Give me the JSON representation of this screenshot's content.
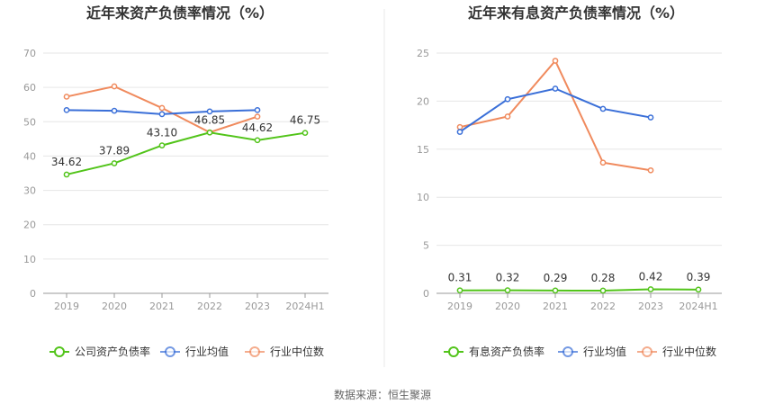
{
  "source": "数据来源：恒生聚源",
  "chart_data": [
    {
      "type": "line",
      "title": "近年来资产负债率情况（%）",
      "categories": [
        "2019",
        "2020",
        "2021",
        "2022",
        "2023",
        "2024H1"
      ],
      "ylim": [
        0,
        70
      ],
      "yticks": [
        0,
        10,
        20,
        30,
        40,
        50,
        60,
        70
      ],
      "grid": true,
      "legend_position": "bottom",
      "series": [
        {
          "name": "公司资产负债率",
          "color": "#52c41a",
          "values": [
            34.62,
            37.89,
            43.1,
            46.85,
            44.62,
            46.75
          ],
          "labels": [
            "34.62",
            "37.89",
            "43.10",
            "46.85",
            "44.62",
            "46.75"
          ]
        },
        {
          "name": "行业均值",
          "color": "#3a6fd8",
          "values": [
            53.4,
            53.2,
            52.2,
            53.0,
            53.4,
            null
          ]
        },
        {
          "name": "行业中位数",
          "color": "#f08a5d",
          "values": [
            57.3,
            60.3,
            54.0,
            46.9,
            51.5,
            null
          ]
        }
      ]
    },
    {
      "type": "line",
      "title": "近年来有息资产负债率情况（%）",
      "categories": [
        "2019",
        "2020",
        "2021",
        "2022",
        "2023",
        "2024H1"
      ],
      "ylim": [
        0,
        25
      ],
      "yticks": [
        0,
        5,
        10,
        15,
        20,
        25
      ],
      "grid": true,
      "legend_position": "bottom",
      "series": [
        {
          "name": "有息资产负债率",
          "color": "#52c41a",
          "values": [
            0.31,
            0.32,
            0.29,
            0.28,
            0.42,
            0.39
          ],
          "labels": [
            "0.31",
            "0.32",
            "0.29",
            "0.28",
            "0.42",
            "0.39"
          ]
        },
        {
          "name": "行业均值",
          "color": "#3a6fd8",
          "values": [
            16.8,
            20.2,
            21.3,
            19.2,
            18.3,
            null
          ]
        },
        {
          "name": "行业中位数",
          "color": "#f08a5d",
          "values": [
            17.3,
            18.4,
            24.2,
            13.6,
            12.8,
            null
          ]
        }
      ]
    }
  ]
}
